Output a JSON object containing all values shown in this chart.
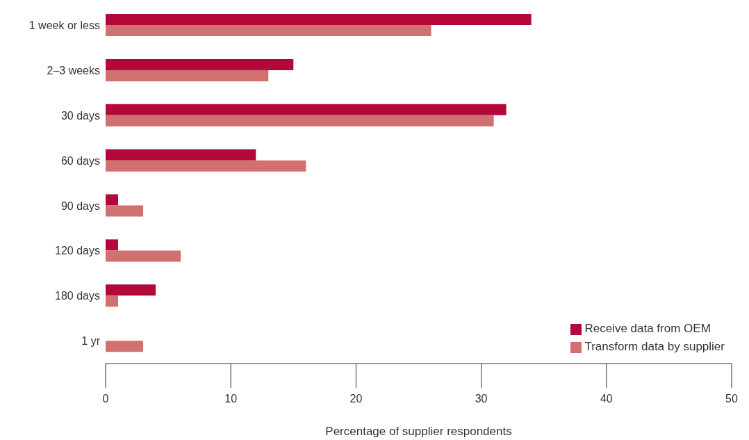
{
  "chart_data": {
    "type": "bar",
    "orientation": "horizontal",
    "xlabel": "Percentage of supplier respondents",
    "categories": [
      "1 week or less",
      "2–3 weeks",
      "30 days",
      "60 days",
      "90 days",
      "120 days",
      "180 days",
      "1 yr"
    ],
    "series": [
      {
        "name": "Receive data from OEM",
        "color": "#b5083a",
        "values": [
          34,
          15,
          32,
          12,
          1,
          1,
          4,
          0
        ]
      },
      {
        "name": "Transform data by supplier",
        "color": "#d17070",
        "values": [
          26,
          13,
          31,
          16,
          3,
          6,
          1,
          3
        ]
      }
    ],
    "xlim": [
      0,
      50
    ],
    "xticks": [
      0,
      10,
      20,
      30,
      40,
      50
    ],
    "grid": false,
    "legend": "bottom right"
  }
}
